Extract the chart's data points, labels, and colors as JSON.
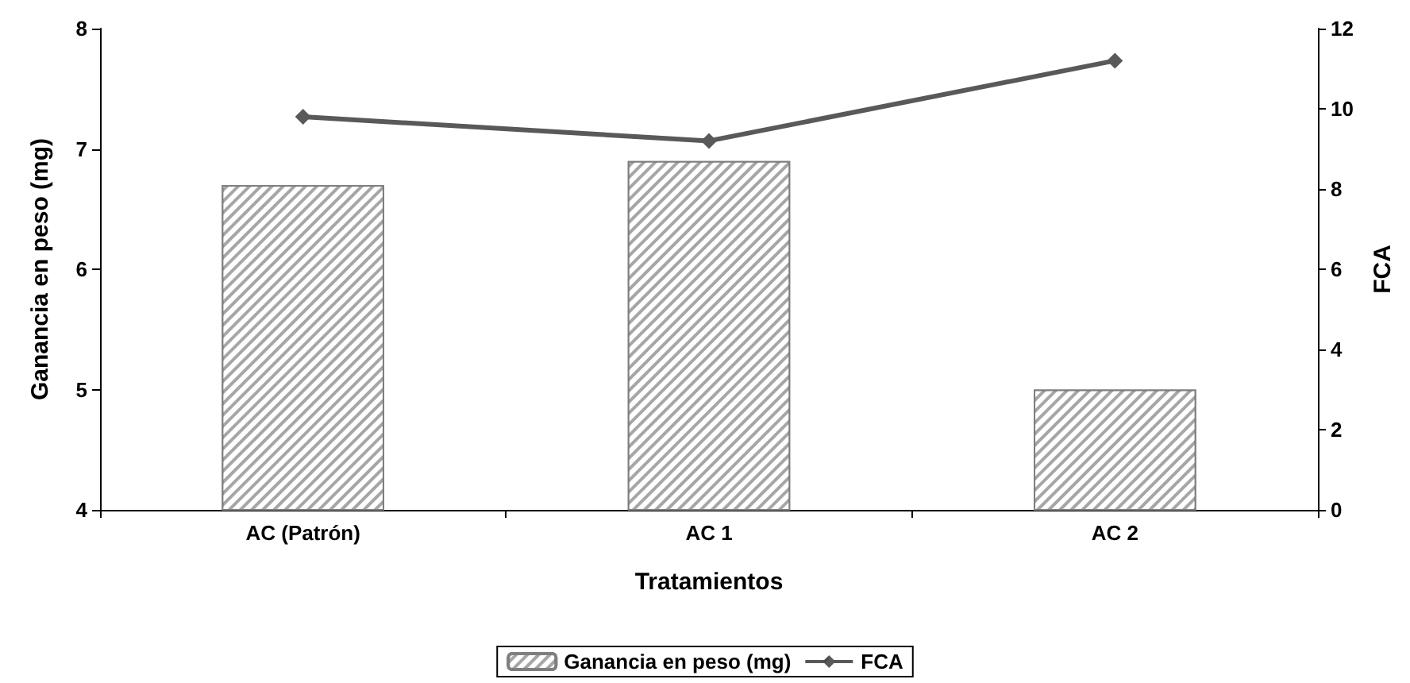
{
  "chart_data": {
    "type": "bar",
    "xlabel": "Tratamientos",
    "ylabel": "Ganancia en peso (mg)",
    "y2label": "FCA",
    "categories": [
      "AC (Patrón)",
      "AC 1",
      "AC 2"
    ],
    "series": [
      {
        "name": "Ganancia en peso (mg)",
        "color": "#a6a6a6",
        "values": [
          6.7,
          6.9,
          5.0
        ]
      },
      {
        "name": "FCA",
        "type": "line",
        "axis": "y2",
        "color": "#595959",
        "values": [
          9.8,
          9.2,
          11.2
        ]
      }
    ],
    "ylim": [
      4,
      8
    ],
    "yticks": [
      4,
      5,
      6,
      7,
      8
    ],
    "y2lim": [
      0,
      12
    ],
    "y2ticks": [
      0,
      2,
      4,
      6,
      8,
      10,
      12
    ],
    "grid": false,
    "legend": "bottom",
    "marker": "diamond"
  }
}
